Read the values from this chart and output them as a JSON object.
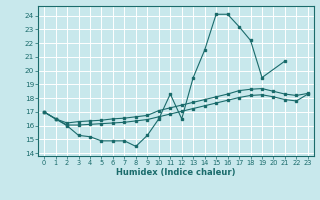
{
  "xlabel": "Humidex (Indice chaleur)",
  "bg_color": "#c8e8ec",
  "grid_color": "#ffffff",
  "line_color": "#1a6b6b",
  "xlim": [
    -0.5,
    23.5
  ],
  "ylim": [
    13.8,
    24.7
  ],
  "yticks": [
    14,
    15,
    16,
    17,
    18,
    19,
    20,
    21,
    22,
    23,
    24
  ],
  "xticks": [
    0,
    1,
    2,
    3,
    4,
    5,
    6,
    7,
    8,
    9,
    10,
    11,
    12,
    13,
    14,
    15,
    16,
    17,
    18,
    19,
    20,
    21,
    22,
    23
  ],
  "series": [
    {
      "x": [
        0,
        1,
        2,
        3,
        4,
        5,
        6,
        7,
        8,
        9,
        10,
        11,
        12,
        13,
        14,
        15,
        16,
        17,
        18,
        19,
        21
      ],
      "y": [
        17.0,
        16.5,
        16.0,
        15.3,
        15.2,
        14.9,
        14.9,
        14.9,
        14.5,
        15.3,
        16.5,
        18.3,
        16.5,
        19.5,
        21.5,
        24.1,
        24.1,
        23.2,
        22.2,
        19.5,
        20.7
      ]
    },
    {
      "x": [
        0,
        1,
        2,
        3,
        4,
        5,
        6,
        7,
        8,
        9,
        10,
        11,
        12,
        13,
        14,
        15,
        16,
        17,
        18,
        19,
        20,
        21,
        22,
        23
      ],
      "y": [
        17.0,
        16.5,
        16.2,
        16.3,
        16.35,
        16.4,
        16.5,
        16.55,
        16.65,
        16.75,
        17.1,
        17.3,
        17.5,
        17.7,
        17.9,
        18.1,
        18.3,
        18.55,
        18.65,
        18.7,
        18.5,
        18.3,
        18.2,
        18.35
      ]
    },
    {
      "x": [
        0,
        1,
        2,
        3,
        4,
        5,
        6,
        7,
        8,
        9,
        10,
        11,
        12,
        13,
        14,
        15,
        16,
        17,
        18,
        19,
        20,
        21,
        22,
        23
      ],
      "y": [
        17.0,
        16.5,
        16.05,
        16.05,
        16.1,
        16.15,
        16.2,
        16.25,
        16.35,
        16.45,
        16.65,
        16.85,
        17.05,
        17.25,
        17.45,
        17.65,
        17.85,
        18.05,
        18.2,
        18.25,
        18.1,
        17.9,
        17.8,
        18.3
      ]
    }
  ]
}
